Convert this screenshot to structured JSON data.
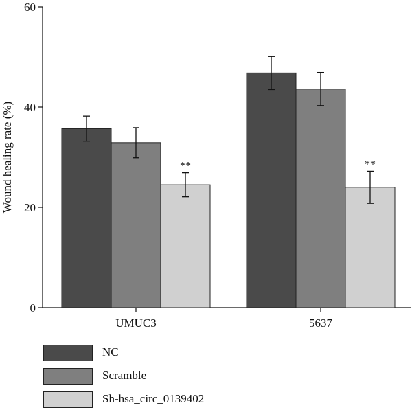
{
  "chart_data": {
    "type": "bar",
    "title": "",
    "xlabel": "",
    "ylabel": "Wound healing rate (%)",
    "ylim": [
      0,
      60
    ],
    "yticks": [
      "0",
      "20",
      "40",
      "60"
    ],
    "categories": [
      "UMUC3",
      "5637"
    ],
    "series": [
      {
        "name": "NC",
        "color": "#4a4a4a",
        "values": [
          35.7,
          46.8
        ],
        "errors": [
          2.5,
          3.3
        ],
        "annotations": [
          "",
          ""
        ]
      },
      {
        "name": "Scramble",
        "color": "#7f7f7f",
        "values": [
          32.9,
          43.6
        ],
        "errors": [
          3.0,
          3.3
        ],
        "annotations": [
          "",
          ""
        ]
      },
      {
        "name": "Sh-hsa_circ_0139402",
        "color": "#d0d0d0",
        "values": [
          24.5,
          24.0
        ],
        "errors": [
          2.4,
          3.2
        ],
        "annotations": [
          "**",
          "**"
        ]
      }
    ],
    "grid": false,
    "legend_position": "bottom-left"
  }
}
